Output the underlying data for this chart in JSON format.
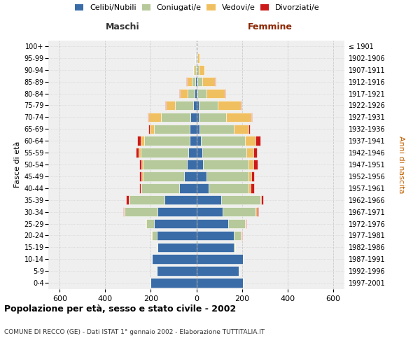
{
  "age_groups": [
    "0-4",
    "5-9",
    "10-14",
    "15-19",
    "20-24",
    "25-29",
    "30-34",
    "35-39",
    "40-44",
    "45-49",
    "50-54",
    "55-59",
    "60-64",
    "65-69",
    "70-74",
    "75-79",
    "80-84",
    "85-89",
    "90-94",
    "95-99",
    "100+"
  ],
  "birth_years": [
    "1997-2001",
    "1992-1996",
    "1987-1991",
    "1982-1986",
    "1977-1981",
    "1972-1976",
    "1967-1971",
    "1962-1966",
    "1957-1961",
    "1952-1956",
    "1947-1951",
    "1942-1946",
    "1937-1941",
    "1932-1936",
    "1927-1931",
    "1922-1926",
    "1917-1921",
    "1912-1916",
    "1907-1911",
    "1902-1906",
    "≤ 1901"
  ],
  "males": {
    "celibi": [
      200,
      175,
      195,
      170,
      175,
      185,
      170,
      140,
      75,
      55,
      40,
      35,
      30,
      30,
      25,
      15,
      8,
      5,
      3,
      2,
      0
    ],
    "coniugati": [
      0,
      0,
      0,
      5,
      20,
      35,
      145,
      155,
      165,
      180,
      195,
      210,
      200,
      155,
      130,
      80,
      30,
      15,
      5,
      2,
      0
    ],
    "vedovi": [
      0,
      0,
      0,
      0,
      2,
      2,
      2,
      3,
      3,
      5,
      5,
      10,
      15,
      20,
      55,
      40,
      35,
      20,
      5,
      2,
      0
    ],
    "divorziati": [
      0,
      0,
      0,
      0,
      2,
      2,
      5,
      10,
      8,
      10,
      10,
      10,
      15,
      5,
      5,
      2,
      3,
      5,
      0,
      0,
      0
    ]
  },
  "females": {
    "nubili": [
      205,
      185,
      205,
      165,
      165,
      140,
      115,
      110,
      55,
      45,
      30,
      25,
      20,
      15,
      10,
      10,
      5,
      5,
      2,
      2,
      0
    ],
    "coniugate": [
      0,
      0,
      0,
      5,
      30,
      75,
      145,
      170,
      175,
      185,
      200,
      195,
      195,
      150,
      120,
      85,
      40,
      20,
      8,
      3,
      0
    ],
    "vedove": [
      0,
      0,
      0,
      0,
      3,
      3,
      5,
      5,
      8,
      10,
      20,
      30,
      45,
      65,
      110,
      100,
      80,
      55,
      25,
      8,
      2
    ],
    "divorziate": [
      0,
      0,
      0,
      0,
      2,
      3,
      8,
      10,
      15,
      15,
      20,
      15,
      20,
      5,
      5,
      2,
      3,
      5,
      0,
      0,
      0
    ]
  },
  "colors": {
    "celibi": "#3a6ca8",
    "coniugati": "#b5c99a",
    "vedovi": "#f0c060",
    "divorziati": "#cc1a1a"
  },
  "xlim": 650,
  "title": "Popolazione per età, sesso e stato civile - 2002",
  "subtitle": "COMUNE DI RECCO (GE) - Dati ISTAT 1° gennaio 2002 - Elaborazione TUTTITALIA.IT",
  "ylabel_left": "Fasce di età",
  "ylabel_right": "Anni di nascita",
  "xlabel_left": "Maschi",
  "xlabel_right": "Femmine",
  "legend_labels": [
    "Celibi/Nubili",
    "Coniugati/e",
    "Vedovi/e",
    "Divorziati/e"
  ],
  "bg_color": "#efefef",
  "grid_color": "#cccccc",
  "xticks": [
    -600,
    -400,
    -200,
    0,
    200,
    400,
    600
  ]
}
